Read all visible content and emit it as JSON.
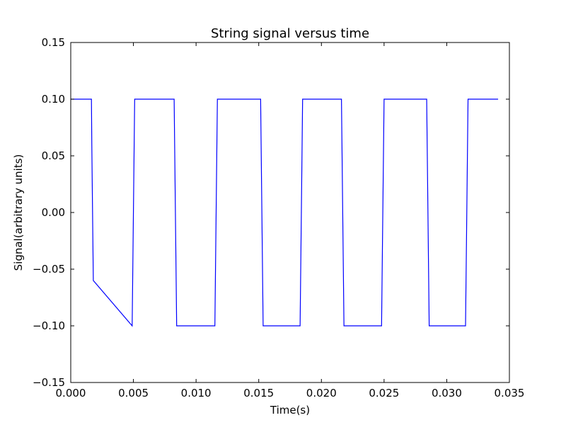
{
  "chart_data": {
    "type": "line",
    "title": "String signal versus time",
    "xlabel": "Time(s)",
    "ylabel": "Signal(arbitrary units)",
    "xlim": [
      0.0,
      0.035
    ],
    "ylim": [
      -0.15,
      0.15
    ],
    "grid": false,
    "legend": "none",
    "x_ticks": [
      0.0,
      0.005,
      0.01,
      0.015,
      0.02,
      0.025,
      0.03,
      0.035
    ],
    "x_tick_labels": [
      "0.000",
      "0.005",
      "0.010",
      "0.015",
      "0.020",
      "0.025",
      "0.030",
      "0.035"
    ],
    "y_ticks": [
      -0.15,
      -0.1,
      -0.05,
      0.0,
      0.05,
      0.1,
      0.15
    ],
    "y_tick_labels": [
      "−0.15",
      "−0.10",
      "−0.05",
      "0.00",
      "0.05",
      "0.10",
      "0.15"
    ],
    "series": [
      {
        "color": "#0000ff",
        "x": [
          0.0,
          0.00165,
          0.00168,
          0.00172,
          0.00176,
          0.0018,
          0.0049,
          0.00494,
          0.00498,
          0.00502,
          0.00506,
          0.0051,
          0.00825,
          0.00829,
          0.00833,
          0.00837,
          0.00841,
          0.00845,
          0.0115,
          0.01154,
          0.01158,
          0.01162,
          0.01166,
          0.0117,
          0.01515,
          0.01519,
          0.01523,
          0.01527,
          0.01531,
          0.01535,
          0.0183,
          0.01834,
          0.01838,
          0.01842,
          0.01846,
          0.0185,
          0.0216,
          0.02164,
          0.02168,
          0.02172,
          0.02176,
          0.0218,
          0.0248,
          0.02484,
          0.02488,
          0.02492,
          0.02496,
          0.025,
          0.0284,
          0.02844,
          0.02848,
          0.02852,
          0.02856,
          0.0286,
          0.0315,
          0.03154,
          0.03158,
          0.03162,
          0.03166,
          0.0317,
          0.0341
        ],
        "y": [
          0.1,
          0.1,
          0.06,
          0.02,
          -0.02,
          -0.06,
          -0.1,
          -0.06,
          -0.02,
          0.02,
          0.06,
          0.1,
          0.1,
          0.06,
          0.02,
          -0.02,
          -0.06,
          -0.1,
          -0.1,
          -0.06,
          -0.02,
          0.02,
          0.06,
          0.1,
          0.1,
          0.06,
          0.02,
          -0.02,
          -0.06,
          -0.1,
          -0.1,
          -0.06,
          -0.02,
          0.02,
          0.06,
          0.1,
          0.1,
          0.06,
          0.02,
          -0.02,
          -0.06,
          -0.1,
          -0.1,
          -0.06,
          -0.02,
          0.02,
          0.06,
          0.1,
          0.1,
          0.06,
          0.02,
          -0.02,
          -0.06,
          -0.1,
          -0.1,
          -0.06,
          -0.02,
          0.02,
          0.06,
          0.1,
          0.1
        ]
      }
    ]
  }
}
